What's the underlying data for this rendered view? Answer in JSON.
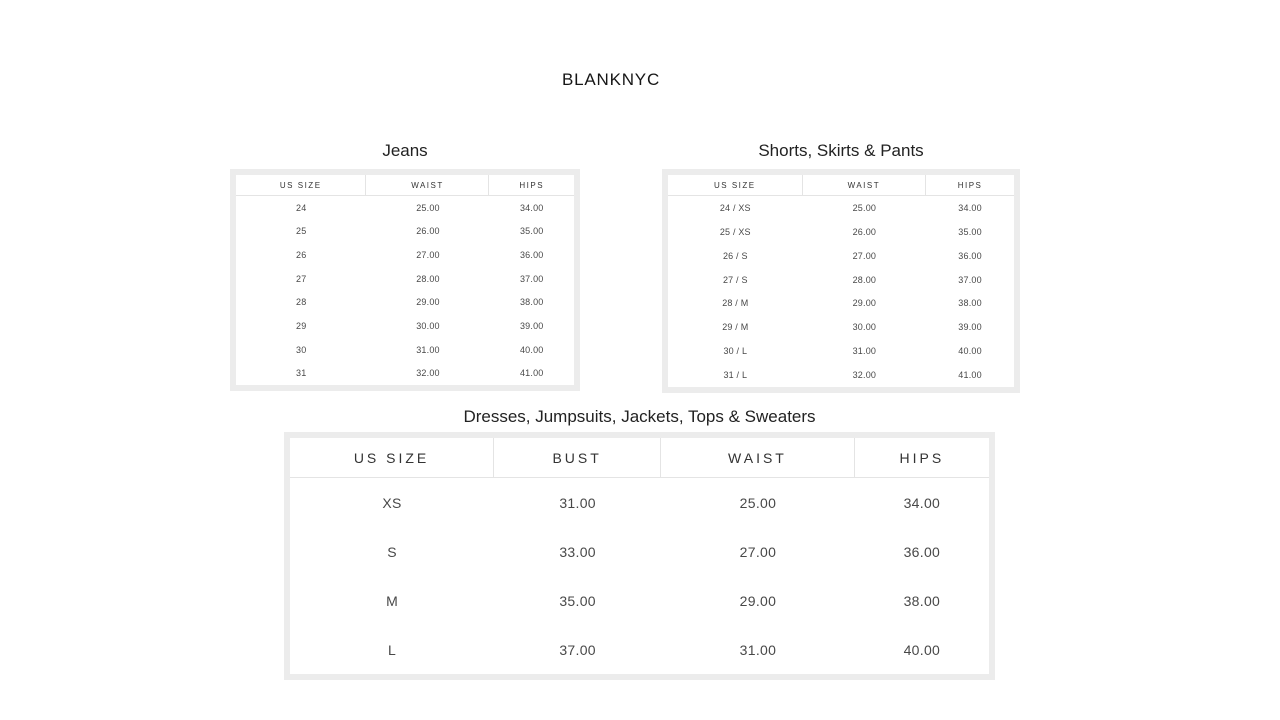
{
  "brand": "BLANKNYC",
  "tables": [
    {
      "title": "Jeans",
      "columns": [
        "US SIZE",
        "WAIST",
        "HIPS"
      ],
      "rows": [
        [
          "24",
          "25.00",
          "34.00"
        ],
        [
          "25",
          "26.00",
          "35.00"
        ],
        [
          "26",
          "27.00",
          "36.00"
        ],
        [
          "27",
          "28.00",
          "37.00"
        ],
        [
          "28",
          "29.00",
          "38.00"
        ],
        [
          "29",
          "30.00",
          "39.00"
        ],
        [
          "30",
          "31.00",
          "40.00"
        ],
        [
          "31",
          "32.00",
          "41.00"
        ]
      ]
    },
    {
      "title": "Shorts, Skirts & Pants",
      "columns": [
        "US SIZE",
        "WAIST",
        "HIPS"
      ],
      "rows": [
        [
          "24 / XS",
          "25.00",
          "34.00"
        ],
        [
          "25 / XS",
          "26.00",
          "35.00"
        ],
        [
          "26 / S",
          "27.00",
          "36.00"
        ],
        [
          "27 / S",
          "28.00",
          "37.00"
        ],
        [
          "28 / M",
          "29.00",
          "38.00"
        ],
        [
          "29 / M",
          "30.00",
          "39.00"
        ],
        [
          "30 / L",
          "31.00",
          "40.00"
        ],
        [
          "31 / L",
          "32.00",
          "41.00"
        ]
      ]
    },
    {
      "title": "Dresses, Jumpsuits, Jackets, Tops & Sweaters",
      "columns": [
        "US SIZE",
        "BUST",
        "WAIST",
        "HIPS"
      ],
      "rows": [
        [
          "XS",
          "31.00",
          "25.00",
          "34.00"
        ],
        [
          "S",
          "33.00",
          "27.00",
          "36.00"
        ],
        [
          "M",
          "35.00",
          "29.00",
          "38.00"
        ],
        [
          "L",
          "37.00",
          "31.00",
          "40.00"
        ]
      ]
    }
  ],
  "colors": {
    "frame": "#ececec",
    "divider": "#e4e4e4",
    "header_text": "#333333",
    "cell_text": "#484848",
    "title_text": "#222222",
    "background": "#ffffff"
  }
}
